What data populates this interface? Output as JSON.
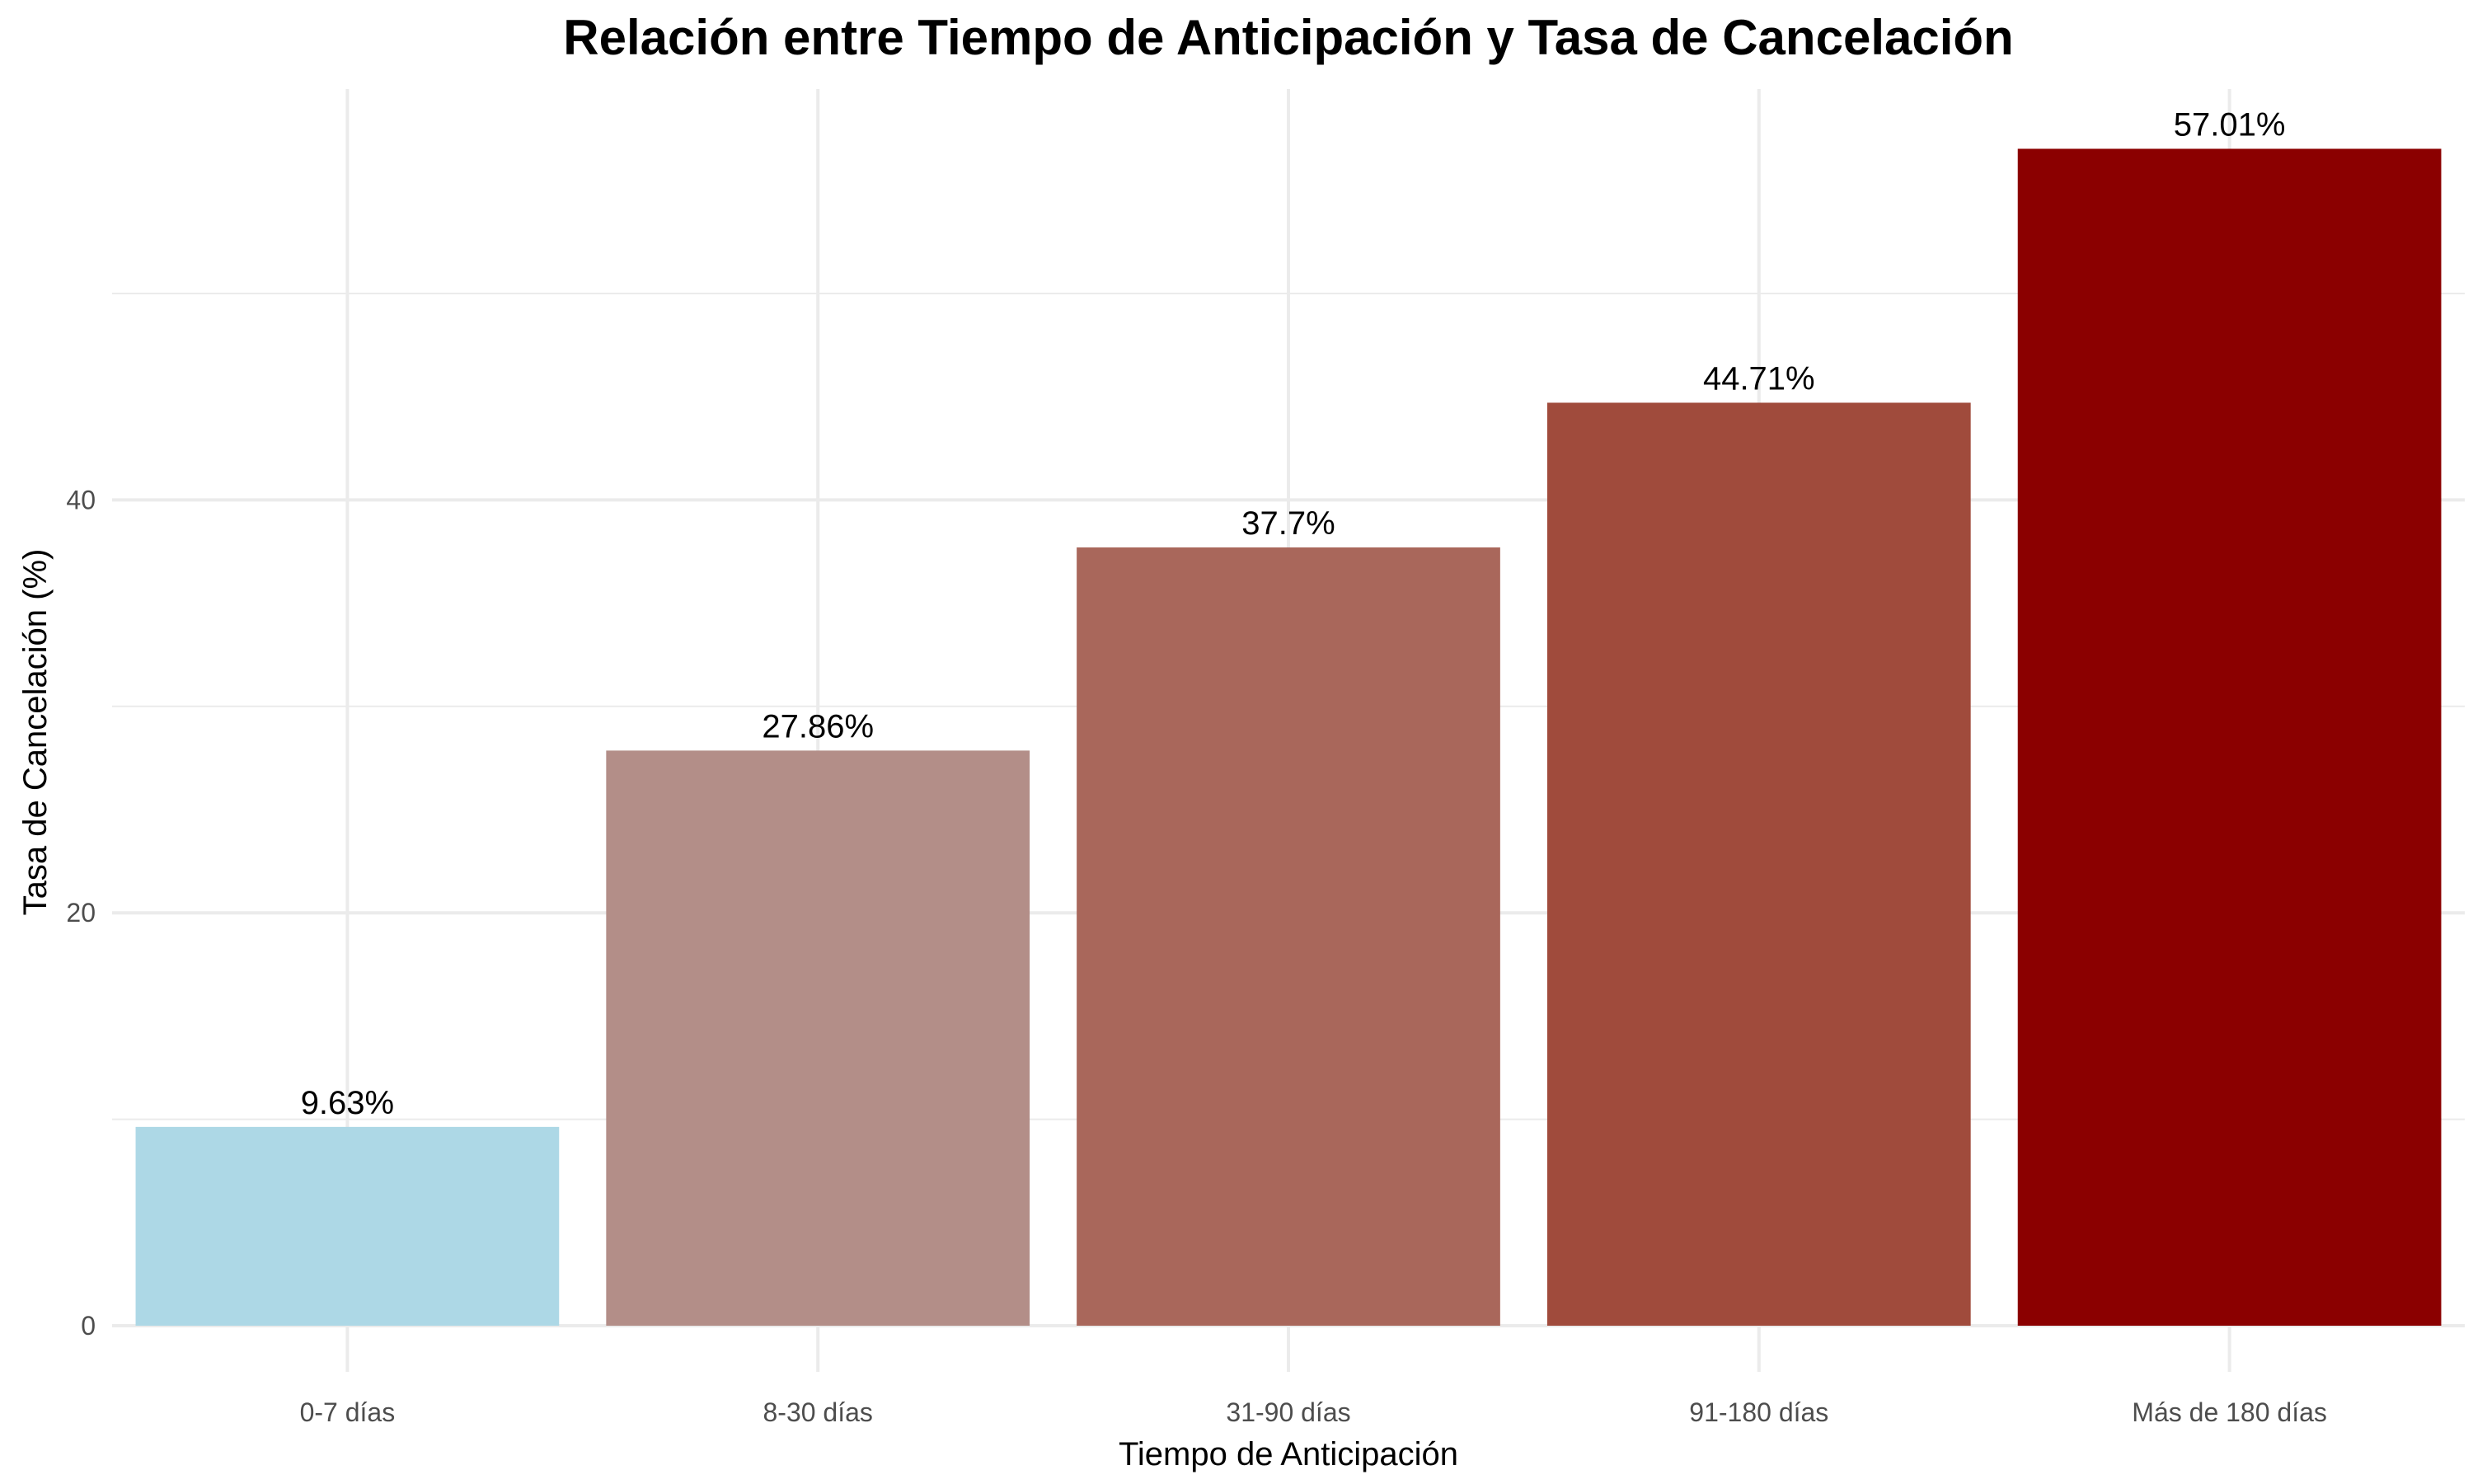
{
  "chart_data": {
    "type": "bar",
    "title": "Relación entre Tiempo de Anticipación y Tasa de Cancelación",
    "xlabel": "Tiempo de Anticipación",
    "ylabel": "Tasa de Cancelación (%)",
    "categories": [
      "0-7 días",
      "8-30 días",
      "31-90 días",
      "91-180 días",
      "Más de 180 días"
    ],
    "values": [
      9.63,
      27.86,
      37.7,
      44.71,
      57.01
    ],
    "data_labels": [
      "9.63%",
      "27.86%",
      "37.7%",
      "44.71%",
      "57.01%"
    ],
    "colors": [
      "#ADD8E6",
      "#B38E88",
      "#A9675B",
      "#A04B3C",
      "#8B0000"
    ],
    "ylim": [
      0,
      60
    ],
    "y_ticks": [
      0,
      20,
      40
    ],
    "y_tick_labels": [
      "0",
      "20",
      "40"
    ],
    "grid": true,
    "legend": "none"
  }
}
